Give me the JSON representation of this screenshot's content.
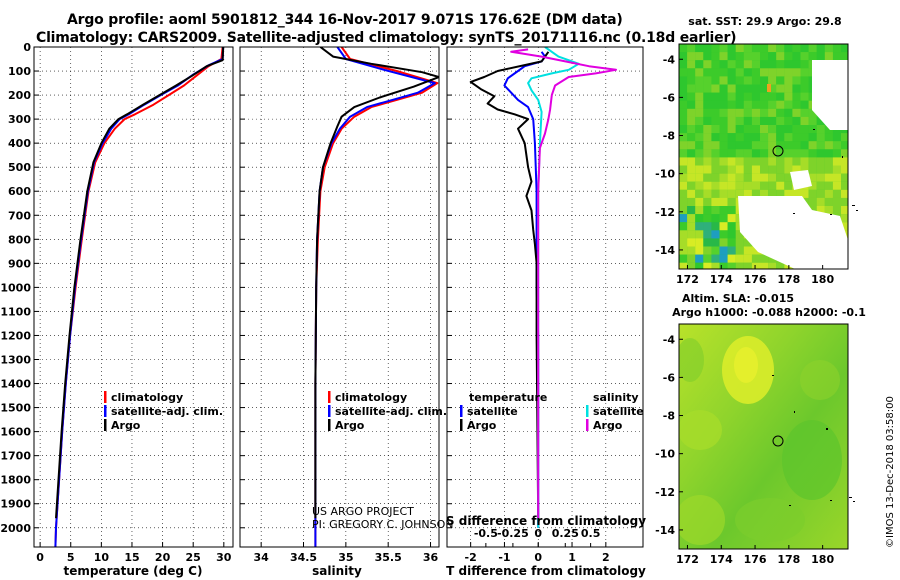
{
  "header": {
    "line1": "Argo profile: aoml 5901812_344 16-Nov-2017 9.071S 176.62E (DM data)",
    "line2": "Climatology: CARS2009. Satellite-adjusted climatology: synTS_20171116.nc (0.18d earlier)"
  },
  "colors": {
    "climatology": "#ff0000",
    "satellite": "#0000ff",
    "argo": "#000000",
    "sat_salinity": "#00e0e0",
    "argo_salinity": "#e000e0"
  },
  "chart_data": [
    {
      "id": "temperature",
      "type": "line",
      "xlabel": "temperature (deg C)",
      "ylabel": "",
      "xlim": [
        -1,
        31.5
      ],
      "ylim": [
        2080,
        0
      ],
      "xticks": [
        0,
        5,
        10,
        15,
        20,
        25,
        30
      ],
      "yticks": [
        0,
        100,
        200,
        300,
        400,
        500,
        600,
        700,
        800,
        900,
        1000,
        1100,
        1200,
        1300,
        1400,
        1500,
        1600,
        1700,
        1800,
        1900,
        2000
      ],
      "legend": [
        "climatology",
        "satellite-adj. clim.",
        "Argo"
      ],
      "series": [
        {
          "name": "climatology",
          "color": "#ff0000",
          "points": [
            [
              29.8,
              0
            ],
            [
              29.6,
              50
            ],
            [
              27.5,
              80
            ],
            [
              25.5,
              120
            ],
            [
              23.5,
              160
            ],
            [
              21,
              200
            ],
            [
              18.5,
              240
            ],
            [
              15.5,
              280
            ],
            [
              13.8,
              300
            ],
            [
              12.2,
              340
            ],
            [
              10.5,
              400
            ],
            [
              9,
              480
            ],
            [
              7.9,
              600
            ],
            [
              6.8,
              800
            ],
            [
              5.8,
              1000
            ],
            [
              4.9,
              1200
            ],
            [
              4.2,
              1400
            ],
            [
              3.6,
              1600
            ],
            [
              3.1,
              1800
            ],
            [
              2.6,
              2000
            ],
            [
              2.5,
              2080
            ]
          ]
        },
        {
          "name": "satellite-adj. clim.",
          "color": "#0000ff",
          "points": [
            [
              29.9,
              0
            ],
            [
              29.8,
              50
            ],
            [
              27.6,
              75
            ],
            [
              25,
              115
            ],
            [
              22.5,
              160
            ],
            [
              19.7,
              200
            ],
            [
              17,
              240
            ],
            [
              14.5,
              280
            ],
            [
              13,
              300
            ],
            [
              11.6,
              340
            ],
            [
              10.2,
              400
            ],
            [
              8.8,
              480
            ],
            [
              7.8,
              600
            ],
            [
              6.7,
              800
            ],
            [
              5.7,
              1000
            ],
            [
              4.9,
              1200
            ],
            [
              4.2,
              1400
            ],
            [
              3.6,
              1600
            ],
            [
              3.1,
              1800
            ],
            [
              2.6,
              2000
            ],
            [
              2.5,
              2080
            ]
          ]
        },
        {
          "name": "Argo",
          "color": "#000000",
          "points": [
            [
              29.9,
              0
            ],
            [
              29.8,
              55
            ],
            [
              27.2,
              80
            ],
            [
              24.8,
              120
            ],
            [
              22.2,
              160
            ],
            [
              19.5,
              200
            ],
            [
              16.8,
              240
            ],
            [
              14.2,
              280
            ],
            [
              12.8,
              300
            ],
            [
              11.3,
              340
            ],
            [
              10,
              400
            ],
            [
              8.7,
              480
            ],
            [
              7.7,
              600
            ],
            [
              6.6,
              800
            ],
            [
              5.6,
              1000
            ],
            [
              4.8,
              1200
            ],
            [
              4.1,
              1400
            ],
            [
              3.5,
              1600
            ],
            [
              3,
              1800
            ],
            [
              2.6,
              1960
            ]
          ]
        }
      ]
    },
    {
      "id": "salinity",
      "type": "line",
      "xlabel": "salinity",
      "ylabel": "",
      "xlim": [
        33.75,
        36.1
      ],
      "ylim": [
        2080,
        0
      ],
      "xticks": [
        34,
        34.5,
        35,
        35.5,
        36
      ],
      "xticklabels": [
        "34",
        "34.5",
        "35",
        "35.5",
        "36"
      ],
      "legend": [
        "climatology",
        "satellite-adj. clim.",
        "Argo"
      ],
      "series": [
        {
          "name": "climatology",
          "color": "#ff0000",
          "points": [
            [
              34.95,
              0
            ],
            [
              35.05,
              50
            ],
            [
              35.6,
              100
            ],
            [
              36.08,
              150
            ],
            [
              35.9,
              190
            ],
            [
              35.6,
              220
            ],
            [
              35.3,
              250
            ],
            [
              35.1,
              290
            ],
            [
              34.95,
              340
            ],
            [
              34.85,
              400
            ],
            [
              34.75,
              500
            ],
            [
              34.7,
              600
            ],
            [
              34.67,
              800
            ],
            [
              34.65,
              1000
            ],
            [
              34.64,
              1400
            ],
            [
              34.64,
              2080
            ]
          ]
        },
        {
          "name": "satellite-adj. clim.",
          "color": "#0000ff",
          "points": [
            [
              34.9,
              0
            ],
            [
              35,
              50
            ],
            [
              35.45,
              95
            ],
            [
              36.05,
              150
            ],
            [
              35.85,
              190
            ],
            [
              35.55,
              220
            ],
            [
              35.25,
              250
            ],
            [
              35.05,
              290
            ],
            [
              34.93,
              340
            ],
            [
              34.83,
              400
            ],
            [
              34.73,
              500
            ],
            [
              34.69,
              600
            ],
            [
              34.66,
              800
            ],
            [
              34.65,
              1000
            ],
            [
              34.64,
              1400
            ],
            [
              34.64,
              2080
            ]
          ]
        },
        {
          "name": "Argo",
          "color": "#000000",
          "points": [
            [
              34.7,
              0
            ],
            [
              34.85,
              40
            ],
            [
              35.3,
              70
            ],
            [
              35.9,
              105
            ],
            [
              36.1,
              125
            ],
            [
              35.8,
              165
            ],
            [
              35.4,
              210
            ],
            [
              35.1,
              250
            ],
            [
              34.95,
              290
            ],
            [
              34.9,
              330
            ],
            [
              34.82,
              400
            ],
            [
              34.73,
              500
            ],
            [
              34.69,
              600
            ],
            [
              34.66,
              800
            ],
            [
              34.65,
              1000
            ],
            [
              34.64,
              1400
            ],
            [
              34.64,
              1960
            ]
          ]
        }
      ]
    },
    {
      "id": "difference",
      "type": "line",
      "xlabel": "T difference from climatology",
      "xlabel2": "S difference from climatology",
      "xlim": [
        -2.7,
        3.1
      ],
      "ylim": [
        2080,
        0
      ],
      "xticks": [
        -2,
        -1,
        0,
        1,
        2
      ],
      "xticks2_labels": [
        "-0.5",
        "-0.25",
        "0",
        "0.25",
        "0.5"
      ],
      "legend_left_title": "temperature",
      "legend_right_title": "salinity",
      "legend_left": [
        "satellite",
        "Argo"
      ],
      "legend_right": [
        "satellite",
        "Argo"
      ],
      "series": [
        {
          "name": "T satellite",
          "color": "#0000ff",
          "points": [
            [
              0.1,
              20
            ],
            [
              0.2,
              40
            ],
            [
              0.1,
              60
            ],
            [
              -0.4,
              80
            ],
            [
              -0.6,
              100
            ],
            [
              -0.9,
              130
            ],
            [
              -1,
              160
            ],
            [
              -0.8,
              190
            ],
            [
              -0.6,
              220
            ],
            [
              -0.3,
              250
            ],
            [
              -0.15,
              300
            ],
            [
              -0.1,
              400
            ],
            [
              -0.05,
              600
            ],
            [
              -0.05,
              1000
            ],
            [
              0,
              1200
            ],
            [
              0,
              2000
            ]
          ]
        },
        {
          "name": "T Argo",
          "color": "#000000",
          "points": [
            [
              0.3,
              20
            ],
            [
              0.1,
              60
            ],
            [
              -1.2,
              100
            ],
            [
              -1.6,
              125
            ],
            [
              -2,
              145
            ],
            [
              -1.7,
              175
            ],
            [
              -1.3,
              205
            ],
            [
              -1.5,
              235
            ],
            [
              -1.2,
              260
            ],
            [
              -0.7,
              280
            ],
            [
              -0.3,
              300
            ],
            [
              -0.6,
              340
            ],
            [
              -0.4,
              400
            ],
            [
              -0.3,
              500
            ],
            [
              -0.2,
              560
            ],
            [
              -0.35,
              620
            ],
            [
              -0.2,
              680
            ],
            [
              -0.15,
              760
            ],
            [
              -0.1,
              820
            ],
            [
              -0.05,
              900
            ],
            [
              -0.05,
              1200
            ],
            [
              0,
              1960
            ]
          ]
        },
        {
          "name": "S satellite",
          "color": "#00e0e0",
          "points": [
            [
              0.2,
              0
            ],
            [
              0.6,
              40
            ],
            [
              1.2,
              70
            ],
            [
              0.9,
              95
            ],
            [
              0.4,
              110
            ],
            [
              -0.2,
              130
            ],
            [
              -0.3,
              150
            ],
            [
              -0.2,
              180
            ],
            [
              0,
              220
            ],
            [
              0.1,
              270
            ],
            [
              0.05,
              400
            ],
            [
              0,
              600
            ],
            [
              0,
              2000
            ]
          ]
        },
        {
          "name": "S Argo",
          "color": "#e000e0",
          "points": [
            [
              -0.3,
              10
            ],
            [
              -0.8,
              20
            ],
            [
              0.1,
              40
            ],
            [
              0.8,
              60
            ],
            [
              1.5,
              80
            ],
            [
              2.3,
              95
            ],
            [
              1.7,
              110
            ],
            [
              0.9,
              125
            ],
            [
              0.5,
              160
            ],
            [
              0.4,
              200
            ],
            [
              0.35,
              260
            ],
            [
              0.3,
              300
            ],
            [
              0.2,
              360
            ],
            [
              0.05,
              420
            ],
            [
              0,
              600
            ],
            [
              0,
              1960
            ]
          ]
        }
      ]
    }
  ],
  "annotation": {
    "line1": "US ARGO PROJECT",
    "line2": "PI: GREGORY C. JOHNSON"
  },
  "sst_map": {
    "title": "sat. SST: 29.9 Argo: 29.8",
    "xticks": [
      "172",
      "174",
      "176",
      "178",
      "180"
    ],
    "yticks": [
      "-4",
      "-6",
      "-8",
      "-10",
      "-12",
      "-14"
    ]
  },
  "sla_map": {
    "title1": "Altim. SLA: -0.015",
    "title2": "Argo h1000: -0.088 h2000: -0.1",
    "xticks": [
      "172",
      "174",
      "176",
      "178",
      "180"
    ],
    "yticks": [
      "-4",
      "-6",
      "-8",
      "-10",
      "-12",
      "-14"
    ]
  },
  "watermark": "©IMOS 13-Dec-2018 03:58:00"
}
